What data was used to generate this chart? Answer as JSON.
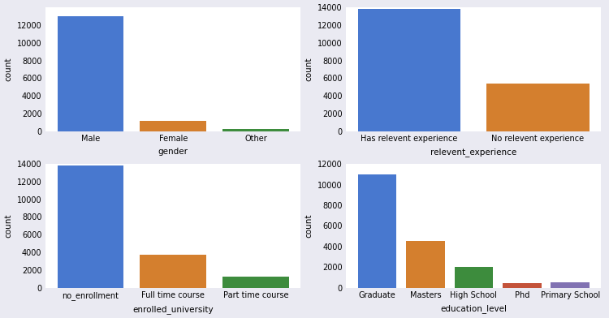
{
  "plots": [
    {
      "categories": [
        "Male",
        "Female",
        "Other"
      ],
      "values": [
        13000,
        1200,
        200
      ],
      "colors": [
        "#4878cf",
        "#d47f2e",
        "#3d8c3d"
      ],
      "xlabel": "gender",
      "ylabel": "count",
      "ylim": [
        0,
        14000
      ],
      "yticks": [
        0,
        2000,
        4000,
        6000,
        8000,
        10000,
        12000
      ]
    },
    {
      "categories": [
        "Has relevent experience",
        "No relevent experience"
      ],
      "values": [
        13800,
        5400
      ],
      "colors": [
        "#4878cf",
        "#d47f2e"
      ],
      "xlabel": "relevent_experience",
      "ylabel": "count",
      "ylim": [
        0,
        14000
      ],
      "yticks": [
        0,
        2000,
        4000,
        6000,
        8000,
        10000,
        12000,
        14000
      ]
    },
    {
      "categories": [
        "no_enrollment",
        "Full time course",
        "Part time course"
      ],
      "values": [
        13800,
        3700,
        1200
      ],
      "colors": [
        "#4878cf",
        "#d47f2e",
        "#3d8c3d"
      ],
      "xlabel": "enrolled_university",
      "ylabel": "count",
      "ylim": [
        0,
        14000
      ],
      "yticks": [
        0,
        2000,
        4000,
        6000,
        8000,
        10000,
        12000,
        14000
      ]
    },
    {
      "categories": [
        "Graduate",
        "Masters",
        "High School",
        "Phd",
        "Primary School"
      ],
      "values": [
        11000,
        4500,
        2000,
        450,
        500
      ],
      "colors": [
        "#4878cf",
        "#d47f2e",
        "#3d8c3d",
        "#c4533a",
        "#8172b2"
      ],
      "xlabel": "education_level",
      "ylabel": "count",
      "ylim": [
        0,
        12000
      ],
      "yticks": [
        0,
        2000,
        4000,
        6000,
        8000,
        10000,
        12000
      ]
    }
  ],
  "bg_color": "#eaeaf2",
  "bar_width": 0.8
}
